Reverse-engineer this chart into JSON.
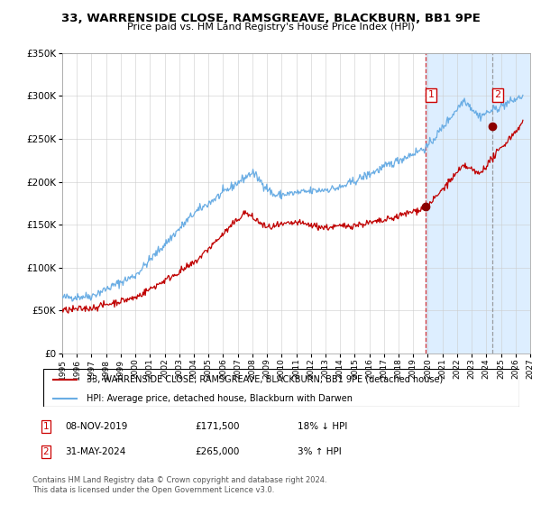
{
  "title": "33, WARRENSIDE CLOSE, RAMSGREAVE, BLACKBURN, BB1 9PE",
  "subtitle": "Price paid vs. HM Land Registry's House Price Index (HPI)",
  "hpi_label": "HPI: Average price, detached house, Blackburn with Darwen",
  "property_label": "33, WARRENSIDE CLOSE, RAMSGREAVE, BLACKBURN, BB1 9PE (detached house)",
  "hpi_color": "#6aade4",
  "property_color": "#c00000",
  "marker_color": "#8b0000",
  "background_color": "#ffffff",
  "plot_bg_color": "#ffffff",
  "sale1_date": "08-NOV-2019",
  "sale1_price": "£171,500",
  "sale1_hpi": "18% ↓ HPI",
  "sale1_year": 2019.86,
  "sale1_value": 171500,
  "sale2_date": "31-MAY-2024",
  "sale2_price": "£265,000",
  "sale2_hpi": "3% ↑ HPI",
  "sale2_year": 2024.42,
  "sale2_value": 265000,
  "xmin": 1995,
  "xmax": 2027,
  "ymin": 0,
  "ymax": 350000,
  "yticks": [
    0,
    50000,
    100000,
    150000,
    200000,
    250000,
    300000,
    350000
  ],
  "footer": "Contains HM Land Registry data © Crown copyright and database right 2024.\nThis data is licensed under the Open Government Licence v3.0.",
  "hatched_region_start": 2019.86,
  "hatched_region_end": 2027,
  "dashed_line1_x": 2019.86,
  "dashed_line2_x": 2024.42
}
